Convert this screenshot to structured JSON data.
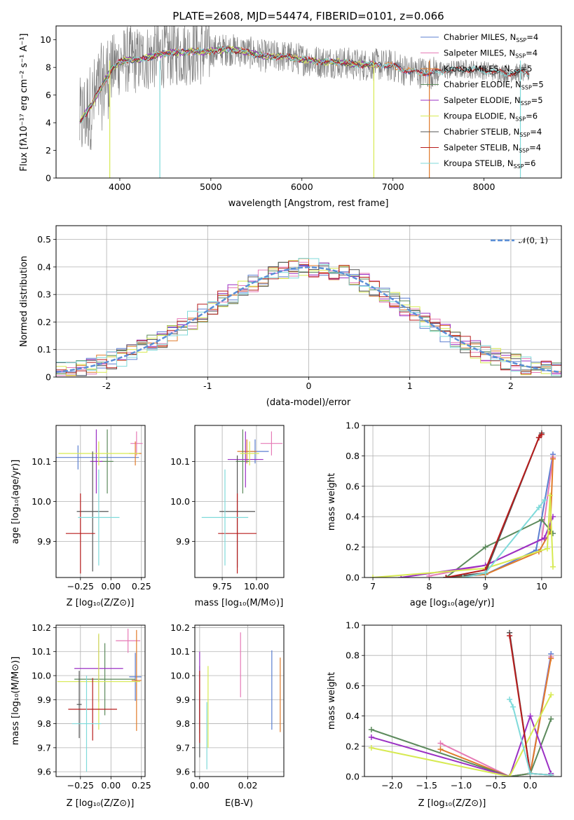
{
  "figure": {
    "title": "PLATE=2608, MJD=54474, FIBERID=0101, z=0.066"
  },
  "palette": {
    "chabrier_miles": "#5b7fd1",
    "salpeter_miles": "#e67ab6",
    "kroupa_miles": "#e07b2a",
    "chabrier_elodie": "#5c8a5c",
    "salpeter_elodie": "#9b30c4",
    "kroupa_elodie": "#d7ea52",
    "chabrier_stelib": "#555555",
    "salpeter_stelib": "#b71c1c",
    "kroupa_stelib": "#7fdada",
    "data_grey": "#808080"
  },
  "chart_data": [
    {
      "id": "spectrum",
      "type": "line",
      "title": "PLATE=2608, MJD=54474, FIBERID=0101, z=0.066",
      "xlabel": "wavelength [Angstrom, rest frame]",
      "ylabel": "Flux [fλ10⁻¹⁷ erg cm⁻² s⁻¹ A⁻¹]",
      "xlim": [
        3300,
        8850
      ],
      "ylim": [
        0,
        11
      ],
      "xticks": [
        4000,
        5000,
        6000,
        7000,
        8000
      ],
      "yticks": [
        0,
        2,
        4,
        6,
        8,
        10
      ],
      "grid": false,
      "legend_position": "top-right",
      "continuum": {
        "x": [
          3560,
          3600,
          3700,
          3800,
          3900,
          4000,
          4100,
          4200,
          4300,
          4400,
          4500,
          4600,
          4700,
          4800,
          4900,
          5000,
          5200,
          5400,
          5600,
          5800,
          6000,
          6200,
          6400,
          6600,
          6800,
          7000,
          7200,
          7400,
          7600,
          7800,
          8000,
          8200,
          8400
        ],
        "y": [
          4.0,
          4.4,
          5.4,
          6.6,
          7.8,
          8.4,
          8.6,
          8.5,
          8.7,
          8.9,
          9.0,
          9.1,
          9.1,
          9.2,
          9.1,
          9.2,
          9.3,
          9.1,
          8.8,
          8.8,
          8.6,
          8.4,
          8.4,
          8.2,
          8.2,
          8.1,
          7.7,
          7.6,
          7.8,
          7.9,
          7.8,
          7.6,
          7.6
        ]
      },
      "series": [
        {
          "name": "Chabrier MILES, N_SSP=4",
          "name_main": "Chabrier MILES, N",
          "name_sub": "SSP",
          "name_tail": "=4",
          "color_key": "chabrier_miles",
          "xmax": 7450
        },
        {
          "name": "Salpeter MILES, N_SSP=4",
          "name_main": "Salpeter MILES, N",
          "name_sub": "SSP",
          "name_tail": "=4",
          "color_key": "salpeter_miles",
          "xmax": 7450
        },
        {
          "name": "Kroupa MILES, N_SSP=5",
          "name_main": "Kroupa MILES, N",
          "name_sub": "SSP",
          "name_tail": "=5",
          "color_key": "kroupa_miles",
          "xmax": 7450
        },
        {
          "name": "Chabrier ELODIE, N_SSP=5",
          "name_main": "Chabrier ELODIE, N",
          "name_sub": "SSP",
          "name_tail": "=5",
          "color_key": "chabrier_elodie",
          "xmax": 6800
        },
        {
          "name": "Salpeter ELODIE, N_SSP=5",
          "name_main": "Salpeter ELODIE, N",
          "name_sub": "SSP",
          "name_tail": "=5",
          "color_key": "salpeter_elodie",
          "xmax": 6800
        },
        {
          "name": "Kroupa ELODIE, N_SSP=6",
          "name_main": "Kroupa ELODIE, N",
          "name_sub": "SSP",
          "name_tail": "=6",
          "color_key": "kroupa_elodie",
          "xmax": 6800
        },
        {
          "name": "Chabrier STELIB, N_SSP=4",
          "name_main": "Chabrier STELIB, N",
          "name_sub": "SSP",
          "name_tail": "=4",
          "color_key": "chabrier_stelib",
          "xmax": 8500
        },
        {
          "name": "Salpeter STELIB, N_SSP=4",
          "name_main": "Salpeter STELIB, N",
          "name_sub": "SSP",
          "name_tail": "=4",
          "color_key": "salpeter_stelib",
          "xmax": 8500
        },
        {
          "name": "Kroupa STELIB, N_SSP=6",
          "name_main": "Kroupa STELIB, N",
          "name_sub": "SSP",
          "name_tail": "=6",
          "color_key": "kroupa_stelib",
          "xmax": 8500
        }
      ]
    },
    {
      "id": "residuals",
      "type": "histogram",
      "xlabel": "(data-model)/error",
      "ylabel": "Normed distribution",
      "xlim": [
        -2.5,
        2.5
      ],
      "ylim": [
        0,
        0.55
      ],
      "xticks": [
        -2,
        -1,
        0,
        1,
        2
      ],
      "yticks": [
        0.0,
        0.1,
        0.2,
        0.3,
        0.4,
        0.5
      ],
      "grid": true,
      "bin_width": 0.1,
      "reference": {
        "label": "𝒩(0, 1)",
        "color": "#5b8fd6",
        "mean": 0,
        "sigma": 1
      },
      "legend_position": "top-right"
    },
    {
      "id": "z-age",
      "type": "errorbar",
      "xlabel": "Z [log₁₀(Z/Z⊙)]",
      "ylabel": "age  [log₁₀(age/yr)]",
      "xlim": [
        -0.45,
        0.28
      ],
      "ylim": [
        9.81,
        10.19
      ],
      "xticks": [
        -0.25,
        0.0,
        0.25
      ],
      "xticklabels": [
        "−0.25",
        "0.00",
        "0.25"
      ],
      "yticks": [
        9.9,
        10.0,
        10.1
      ],
      "yticklabels": [
        "9.9",
        "10.0",
        "10.1"
      ],
      "grid": true,
      "points": [
        {
          "key": "chabrier_miles",
          "x": -0.27,
          "xerr": 0.5,
          "y": 10.11,
          "yerr": 0.03
        },
        {
          "key": "salpeter_miles",
          "x": 0.21,
          "xerr": 0.05,
          "y": 10.145,
          "yerr": 0.03
        },
        {
          "key": "kroupa_miles",
          "x": 0.2,
          "xerr": 0.05,
          "y": 10.12,
          "yerr": 0.03
        },
        {
          "key": "chabrier_elodie",
          "x": -0.03,
          "xerr": 0.05,
          "y": 10.1,
          "yerr": 0.08
        },
        {
          "key": "salpeter_elodie",
          "x": -0.12,
          "xerr": 0.05,
          "y": 10.1,
          "yerr": 0.08
        },
        {
          "key": "kroupa_elodie",
          "x": -0.1,
          "xerr": 0.33,
          "y": 10.12,
          "yerr": 0.03
        },
        {
          "key": "chabrier_stelib",
          "x": -0.15,
          "xerr": 0.13,
          "y": 9.975,
          "yerr": 0.15
        },
        {
          "key": "salpeter_stelib",
          "x": -0.25,
          "xerr": 0.12,
          "y": 9.92,
          "yerr": 0.1
        },
        {
          "key": "kroupa_stelib",
          "x": -0.1,
          "xerr": 0.17,
          "y": 9.96,
          "yerr": 0.12
        }
      ]
    },
    {
      "id": "mass-age",
      "type": "errorbar",
      "xlabel": "mass [log₁₀(M/M⊙)]",
      "ylabel": "",
      "xlim": [
        9.55,
        10.2
      ],
      "ylim": [
        9.81,
        10.19
      ],
      "xticks": [
        9.75,
        10.0
      ],
      "xticklabels": [
        "9.75",
        "10.00"
      ],
      "yticks": [
        9.9,
        10.0,
        10.1
      ],
      "yticklabels": [
        "9.9",
        "10.0",
        "10.1"
      ],
      "grid": true,
      "points": [
        {
          "key": "chabrier_miles",
          "x": 9.99,
          "xerr": 0.1,
          "y": 10.125,
          "yerr": 0.03
        },
        {
          "key": "salpeter_miles",
          "x": 10.11,
          "xerr": 0.08,
          "y": 10.145,
          "yerr": 0.03
        },
        {
          "key": "kroupa_miles",
          "x": 9.93,
          "xerr": 0.07,
          "y": 10.125,
          "yerr": 0.03
        },
        {
          "key": "chabrier_elodie",
          "x": 9.9,
          "xerr": 0.05,
          "y": 10.1,
          "yerr": 0.08
        },
        {
          "key": "salpeter_elodie",
          "x": 9.92,
          "xerr": 0.13,
          "y": 10.105,
          "yerr": 0.07
        },
        {
          "key": "kroupa_elodie",
          "x": 9.95,
          "xerr": 0.07,
          "y": 10.12,
          "yerr": 0.03
        },
        {
          "key": "chabrier_stelib",
          "x": 9.86,
          "xerr": 0.13,
          "y": 9.975,
          "yerr": 0.14
        },
        {
          "key": "salpeter_stelib",
          "x": 9.86,
          "xerr": 0.14,
          "y": 9.92,
          "yerr": 0.1
        },
        {
          "key": "kroupa_stelib",
          "x": 9.77,
          "xerr": 0.17,
          "y": 9.96,
          "yerr": 0.12
        }
      ]
    },
    {
      "id": "age-weight",
      "type": "line",
      "xlabel": "age  [log₁₀(age/yr)]",
      "ylabel": "mass weight",
      "xlim": [
        6.85,
        10.35
      ],
      "ylim": [
        0,
        1.0
      ],
      "xticks": [
        7,
        8,
        9,
        10
      ],
      "xticklabels": [
        "7",
        "8",
        "9",
        "10"
      ],
      "yticks": [
        0.0,
        0.2,
        0.4,
        0.6,
        0.8,
        1.0
      ],
      "yticklabels": [
        "0.0",
        "0.2",
        "0.4",
        "0.6",
        "0.8",
        "1.0"
      ],
      "grid": true,
      "series": [
        {
          "key": "chabrier_miles",
          "x": [
            8.3,
            9.0,
            9.9,
            10.2
          ],
          "y": [
            0.0,
            0.02,
            0.18,
            0.81
          ]
        },
        {
          "key": "salpeter_miles",
          "x": [
            8.0,
            9.0,
            10.0,
            10.2
          ],
          "y": [
            0.01,
            0.08,
            0.25,
            0.79
          ]
        },
        {
          "key": "kroupa_miles",
          "x": [
            8.3,
            9.0,
            9.95,
            10.15,
            10.2
          ],
          "y": [
            0.0,
            0.02,
            0.17,
            0.3,
            0.78
          ]
        },
        {
          "key": "chabrier_elodie",
          "x": [
            8.3,
            9.0,
            10.0,
            10.2
          ],
          "y": [
            0.0,
            0.2,
            0.38,
            0.29
          ]
        },
        {
          "key": "salpeter_elodie",
          "x": [
            7.5,
            9.0,
            10.05,
            10.2
          ],
          "y": [
            0.0,
            0.08,
            0.26,
            0.4
          ]
        },
        {
          "key": "kroupa_elodie",
          "x": [
            7.0,
            9.0,
            10.1,
            10.15,
            10.2
          ],
          "y": [
            0.0,
            0.06,
            0.19,
            0.54,
            0.07
          ]
        },
        {
          "key": "chabrier_stelib",
          "x": [
            8.3,
            9.0,
            9.95,
            10.0
          ],
          "y": [
            0.0,
            0.03,
            0.92,
            0.95
          ]
        },
        {
          "key": "salpeter_stelib",
          "x": [
            8.3,
            9.0,
            9.95,
            10.0
          ],
          "y": [
            0.0,
            0.05,
            0.92,
            0.94
          ]
        },
        {
          "key": "kroupa_stelib",
          "x": [
            8.6,
            9.0,
            9.95,
            10.05
          ],
          "y": [
            0.0,
            0.03,
            0.46,
            0.51
          ]
        }
      ]
    },
    {
      "id": "z-mass",
      "type": "errorbar",
      "xlabel": "Z [log₁₀(Z/Z⊙)]",
      "ylabel": "mass [log₁₀(M/M⊙)]",
      "xlim": [
        -0.45,
        0.28
      ],
      "ylim": [
        9.58,
        10.21
      ],
      "xticks": [
        -0.25,
        0.0,
        0.25
      ],
      "xticklabels": [
        "−0.25",
        "0.00",
        "0.25"
      ],
      "yticks": [
        9.6,
        9.7,
        9.8,
        9.9,
        10.0,
        10.1,
        10.2
      ],
      "yticklabels": [
        "9.6",
        "9.7",
        "9.8",
        "9.9",
        "10.0",
        "10.1",
        "10.2"
      ],
      "grid": true,
      "points": [
        {
          "key": "chabrier_miles",
          "x": 0.2,
          "xerr": 0.05,
          "y": 9.995,
          "yerr": 0.1
        },
        {
          "key": "salpeter_miles",
          "x": 0.14,
          "xerr": 0.1,
          "y": 10.145,
          "yerr": 0.05
        },
        {
          "key": "kroupa_miles",
          "x": 0.21,
          "xerr": 0.04,
          "y": 9.98,
          "yerr": 0.21
        },
        {
          "key": "chabrier_elodie",
          "x": -0.05,
          "xerr": 0.25,
          "y": 9.985,
          "yerr": 0.15
        },
        {
          "key": "salpeter_elodie",
          "x": -0.1,
          "xerr": 0.2,
          "y": 10.03,
          "yerr": 0.14
        },
        {
          "key": "kroupa_elodie",
          "x": -0.1,
          "xerr": 0.34,
          "y": 9.975,
          "yerr": 0.2
        },
        {
          "key": "chabrier_stelib",
          "x": -0.26,
          "xerr": 0.02,
          "y": 9.88,
          "yerr": 0.14
        },
        {
          "key": "salpeter_stelib",
          "x": -0.15,
          "xerr": 0.2,
          "y": 9.86,
          "yerr": 0.13
        },
        {
          "key": "kroupa_stelib",
          "x": -0.2,
          "xerr": 0.12,
          "y": 9.8,
          "yerr": 0.2
        }
      ]
    },
    {
      "id": "ebv-mass",
      "type": "errorbar",
      "xlabel": "E(B-V)",
      "ylabel": "",
      "xlim": [
        -0.002,
        0.035
      ],
      "ylim": [
        9.58,
        10.21
      ],
      "xticks": [
        0.0,
        0.02
      ],
      "xticklabels": [
        "0.00",
        "0.02"
      ],
      "yticks": [
        9.6,
        9.7,
        9.8,
        9.9,
        10.0,
        10.1,
        10.2
      ],
      "yticklabels": [
        "9.6",
        "9.7",
        "9.8",
        "9.9",
        "10.0",
        "10.1",
        "10.2"
      ],
      "grid": true,
      "points": [
        {
          "key": "chabrier_miles",
          "x": 0.03,
          "xerr": 0,
          "y": 9.94,
          "yerr": 0.165
        },
        {
          "key": "salpeter_miles",
          "x": 0.017,
          "xerr": 0,
          "y": 10.045,
          "yerr": 0.135
        },
        {
          "key": "kroupa_miles",
          "x": 0.0335,
          "xerr": 0,
          "y": 9.92,
          "yerr": 0.155
        },
        {
          "key": "chabrier_elodie",
          "x": 0.0,
          "xerr": 0,
          "y": 9.9,
          "yerr": 0.14
        },
        {
          "key": "salpeter_elodie",
          "x": 0.0,
          "xerr": 0,
          "y": 9.95,
          "yerr": 0.15
        },
        {
          "key": "kroupa_elodie",
          "x": 0.0035,
          "xerr": 0,
          "y": 9.87,
          "yerr": 0.17
        },
        {
          "key": "chabrier_stelib",
          "x": 0.0,
          "xerr": 0,
          "y": 9.8,
          "yerr": 0.14
        },
        {
          "key": "salpeter_stelib",
          "x": 0.0,
          "xerr": 0,
          "y": 9.87,
          "yerr": 0.15
        },
        {
          "key": "kroupa_stelib",
          "x": 0.003,
          "xerr": 0,
          "y": 9.75,
          "yerr": 0.14
        }
      ]
    },
    {
      "id": "z-weight",
      "type": "line",
      "xlabel": "Z [log₁₀(Z/Z⊙)]",
      "ylabel": "mass weight",
      "xlim": [
        -2.4,
        0.45
      ],
      "ylim": [
        0,
        1.0
      ],
      "xticks": [
        -2.0,
        -1.5,
        -1.0,
        -0.5,
        0.0
      ],
      "xticklabels": [
        "−2.0",
        "−1.5",
        "−1.0",
        "−0.5",
        "0.0"
      ],
      "yticks": [
        0.0,
        0.2,
        0.4,
        0.6,
        0.8,
        1.0
      ],
      "yticklabels": [
        "0.0",
        "0.2",
        "0.4",
        "0.6",
        "0.8",
        "1.0"
      ],
      "grid": true,
      "series": [
        {
          "key": "chabrier_miles",
          "x": [
            -0.3,
            0.0,
            0.3
          ],
          "y": [
            0.0,
            0.02,
            0.81
          ]
        },
        {
          "key": "salpeter_miles",
          "x": [
            -1.3,
            -0.3,
            0.0,
            0.3
          ],
          "y": [
            0.22,
            0.0,
            0.02,
            0.79
          ]
        },
        {
          "key": "kroupa_miles",
          "x": [
            -1.3,
            -0.3,
            0.0,
            0.3
          ],
          "y": [
            0.18,
            0.0,
            0.02,
            0.78
          ]
        },
        {
          "key": "chabrier_elodie",
          "x": [
            -2.3,
            -0.3,
            0.0,
            0.3
          ],
          "y": [
            0.31,
            0.0,
            0.02,
            0.38
          ]
        },
        {
          "key": "salpeter_elodie",
          "x": [
            -2.3,
            -0.3,
            0.0,
            0.3
          ],
          "y": [
            0.26,
            0.0,
            0.4,
            0.02
          ]
        },
        {
          "key": "kroupa_elodie",
          "x": [
            -2.3,
            -0.3,
            0.3
          ],
          "y": [
            0.19,
            0.0,
            0.54
          ]
        },
        {
          "key": "chabrier_stelib",
          "x": [
            -0.3,
            0.0,
            0.3
          ],
          "y": [
            0.95,
            0.02,
            0.01
          ]
        },
        {
          "key": "salpeter_stelib",
          "x": [
            -0.3,
            0.0,
            0.3
          ],
          "y": [
            0.93,
            0.02,
            0.01
          ]
        },
        {
          "key": "kroupa_stelib",
          "x": [
            -0.3,
            -0.25,
            0.0,
            0.3
          ],
          "y": [
            0.51,
            0.46,
            0.02,
            0.01
          ]
        }
      ]
    }
  ]
}
